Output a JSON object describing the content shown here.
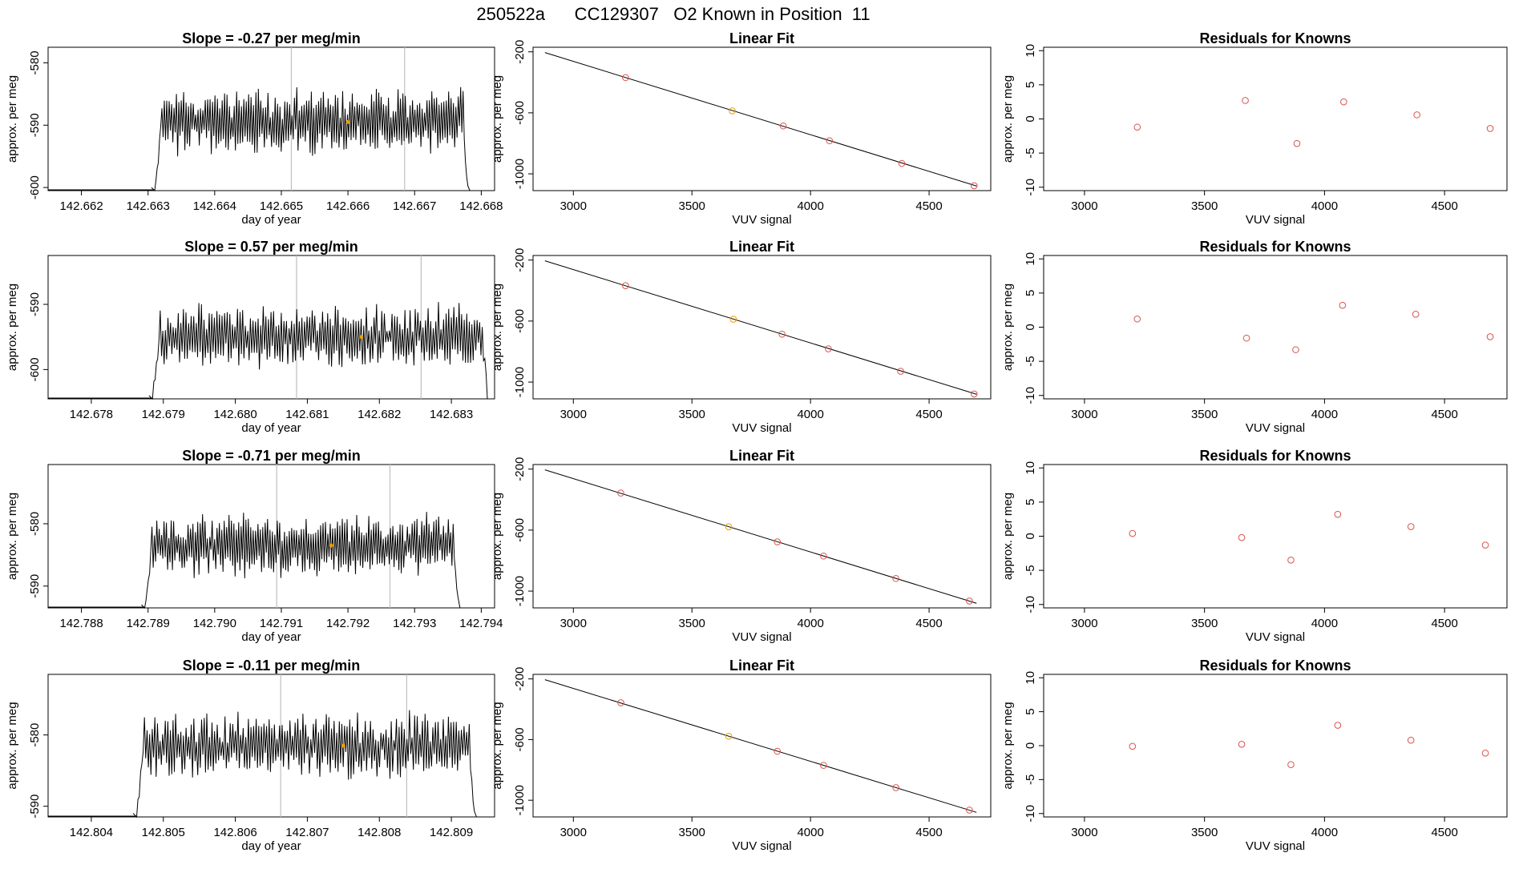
{
  "page_title": "250522a      CC129307   O2 Known in Position  11",
  "colors": {
    "background": "#ffffff",
    "trace": "#000000",
    "point": "#d9534f",
    "highlight": "#e69f00",
    "vline": "#bfbfbf"
  },
  "chart_data": [
    {
      "row": 1,
      "timeseries": {
        "type": "line",
        "title": "Slope =  -0.27  per meg/min",
        "xlabel": "day of year",
        "ylabel": "approx. per meg",
        "xlim": [
          142.6615,
          142.6682
        ],
        "ylim": [
          -600.5,
          -577.5
        ],
        "xticks": [
          "142.662",
          "142.663",
          "142.664",
          "142.665",
          "142.666",
          "142.667",
          "142.668"
        ],
        "yticks": [
          "-580",
          "-590",
          "-600"
        ],
        "data_start": 142.6631,
        "data_end": 142.6678,
        "baseline": -600,
        "mean": -589.5,
        "amplitude": 4.2,
        "seed": 11,
        "vlines": [
          142.66515,
          142.66685
        ],
        "highlight_x": 142.666
      },
      "linear_fit": {
        "type": "scatter",
        "title": "Linear Fit",
        "xlabel": "VUV signal",
        "ylabel": "approx. per meg",
        "xlim": [
          2830,
          4760
        ],
        "ylim": [
          -1110,
          -170
        ],
        "xticks": [
          "3000",
          "3500",
          "4000",
          "4500"
        ],
        "yticks": [
          "-200",
          "-600",
          "-1000"
        ],
        "line": {
          "x": [
            2880,
            4700
          ],
          "y": [
            -205,
            -1080
          ]
        },
        "x": [
          3220,
          3670,
          3885,
          4080,
          4385,
          4690
        ],
        "y": [
          -369,
          -587,
          -686,
          -783,
          -932,
          -1078
        ],
        "highlight_index": 1
      },
      "residuals": {
        "type": "scatter",
        "title": "Residuals for Knowns",
        "xlabel": "VUV signal",
        "ylabel": "approx. per meg",
        "xlim": [
          2830,
          4760
        ],
        "ylim": [
          -10.5,
          10.5
        ],
        "xticks": [
          "3000",
          "3500",
          "4000",
          "4500"
        ],
        "yticks": [
          "10",
          "5",
          "0",
          "-5",
          "-10"
        ],
        "x": [
          3220,
          3670,
          3885,
          4080,
          4385,
          4690
        ],
        "y": [
          -1.2,
          2.7,
          -3.6,
          2.5,
          0.6,
          -1.4
        ]
      }
    },
    {
      "row": 2,
      "timeseries": {
        "type": "line",
        "title": "Slope =  0.57  per meg/min",
        "xlabel": "day of year",
        "ylabel": "approx. per meg",
        "xlim": [
          142.6774,
          142.6836
        ],
        "ylim": [
          -604.5,
          -582.5
        ],
        "xticks": [
          "142.678",
          "142.679",
          "142.680",
          "142.681",
          "142.682",
          "142.683"
        ],
        "yticks": [
          "-590",
          "-600"
        ],
        "data_start": 142.67885,
        "data_end": 142.6835,
        "baseline": -604,
        "mean": -595,
        "amplitude": 4.0,
        "seed": 27,
        "vlines": [
          142.68085,
          142.68258
        ],
        "highlight_x": 142.68175
      },
      "linear_fit": {
        "type": "scatter",
        "title": "Linear Fit",
        "xlabel": "VUV signal",
        "ylabel": "approx. per meg",
        "xlim": [
          2830,
          4760
        ],
        "ylim": [
          -1110,
          -170
        ],
        "xticks": [
          "3000",
          "3500",
          "4000",
          "4500"
        ],
        "yticks": [
          "-200",
          "-600",
          "-1000"
        ],
        "line": {
          "x": [
            2880,
            4700
          ],
          "y": [
            -205,
            -1080
          ]
        },
        "x": [
          3220,
          3675,
          3880,
          4075,
          4380,
          4690
        ],
        "y": [
          -368,
          -588,
          -686,
          -782,
          -929,
          -1078
        ],
        "highlight_index": 1
      },
      "residuals": {
        "type": "scatter",
        "title": "Residuals for Knowns",
        "xlabel": "VUV signal",
        "ylabel": "approx. per meg",
        "xlim": [
          2830,
          4760
        ],
        "ylim": [
          -10.5,
          10.5
        ],
        "xticks": [
          "3000",
          "3500",
          "4000",
          "4500"
        ],
        "yticks": [
          "10",
          "5",
          "0",
          "-5",
          "-10"
        ],
        "x": [
          3220,
          3675,
          3880,
          4075,
          4380,
          4690
        ],
        "y": [
          1.2,
          -1.6,
          -3.3,
          3.2,
          1.9,
          -1.4
        ]
      }
    },
    {
      "row": 3,
      "timeseries": {
        "type": "line",
        "title": "Slope =  -0.71  per meg/min",
        "xlabel": "day of year",
        "ylabel": "approx. per meg",
        "xlim": [
          142.7875,
          142.7942
        ],
        "ylim": [
          -593.5,
          -570.5
        ],
        "xticks": [
          "142.788",
          "142.789",
          "142.790",
          "142.791",
          "142.792",
          "142.793",
          "142.794"
        ],
        "yticks": [
          "-580",
          "-590"
        ],
        "data_start": 142.78895,
        "data_end": 142.79365,
        "baseline": -593,
        "mean": -583.5,
        "amplitude": 4.0,
        "seed": 43,
        "vlines": [
          142.79093,
          142.79263
        ],
        "highlight_x": 142.79175
      },
      "linear_fit": {
        "type": "scatter",
        "title": "Linear Fit",
        "xlabel": "VUV signal",
        "ylabel": "approx. per meg",
        "xlim": [
          2830,
          4760
        ],
        "ylim": [
          -1110,
          -170
        ],
        "xticks": [
          "3000",
          "3500",
          "4000",
          "4500"
        ],
        "yticks": [
          "-200",
          "-600",
          "-1000"
        ],
        "line": {
          "x": [
            2880,
            4700
          ],
          "y": [
            -205,
            -1080
          ]
        },
        "x": [
          3200,
          3655,
          3860,
          4055,
          4360,
          4670
        ],
        "y": [
          -357,
          -578,
          -677,
          -770,
          -917,
          -1065
        ],
        "highlight_index": 1
      },
      "residuals": {
        "type": "scatter",
        "title": "Residuals for Knowns",
        "xlabel": "VUV signal",
        "ylabel": "approx. per meg",
        "xlim": [
          2830,
          4760
        ],
        "ylim": [
          -10.5,
          10.5
        ],
        "xticks": [
          "3000",
          "3500",
          "4000",
          "4500"
        ],
        "yticks": [
          "10",
          "5",
          "0",
          "-5",
          "-10"
        ],
        "x": [
          3200,
          3655,
          3860,
          4055,
          4360,
          4670
        ],
        "y": [
          0.4,
          -0.2,
          -3.5,
          3.2,
          1.4,
          -1.3
        ]
      }
    },
    {
      "row": 4,
      "timeseries": {
        "type": "line",
        "title": "Slope =  -0.11  per meg/min",
        "xlabel": "day of year",
        "ylabel": "approx. per meg",
        "xlim": [
          142.8034,
          142.8096
        ],
        "ylim": [
          -591.5,
          -571.5
        ],
        "xticks": [
          "142.804",
          "142.805",
          "142.806",
          "142.807",
          "142.808",
          "142.809"
        ],
        "yticks": [
          "-580",
          "-590"
        ],
        "data_start": 142.80463,
        "data_end": 142.80932,
        "baseline": -591,
        "mean": -581.5,
        "amplitude": 3.8,
        "seed": 59,
        "vlines": [
          142.80663,
          142.80838
        ],
        "highlight_x": 142.8075
      },
      "linear_fit": {
        "type": "scatter",
        "title": "Linear Fit",
        "xlabel": "VUV signal",
        "ylabel": "approx. per meg",
        "xlim": [
          2830,
          4760
        ],
        "ylim": [
          -1110,
          -170
        ],
        "xticks": [
          "3000",
          "3500",
          "4000",
          "4500"
        ],
        "yticks": [
          "-200",
          "-600",
          "-1000"
        ],
        "line": {
          "x": [
            2880,
            4700
          ],
          "y": [
            -205,
            -1080
          ]
        },
        "x": [
          3200,
          3655,
          3860,
          4055,
          4360,
          4670
        ],
        "y": [
          -357,
          -578,
          -677,
          -770,
          -917,
          -1065
        ],
        "highlight_index": 1
      },
      "residuals": {
        "type": "scatter",
        "title": "Residuals for Knowns",
        "xlabel": "VUV signal",
        "ylabel": "approx. per meg",
        "xlim": [
          2830,
          4760
        ],
        "ylim": [
          -10.5,
          10.5
        ],
        "xticks": [
          "3000",
          "3500",
          "4000",
          "4500"
        ],
        "yticks": [
          "10",
          "5",
          "0",
          "-5",
          "-10"
        ],
        "x": [
          3200,
          3655,
          3860,
          4055,
          4360,
          4670
        ],
        "y": [
          -0.1,
          0.2,
          -2.8,
          3.0,
          0.8,
          -1.1
        ]
      }
    }
  ]
}
